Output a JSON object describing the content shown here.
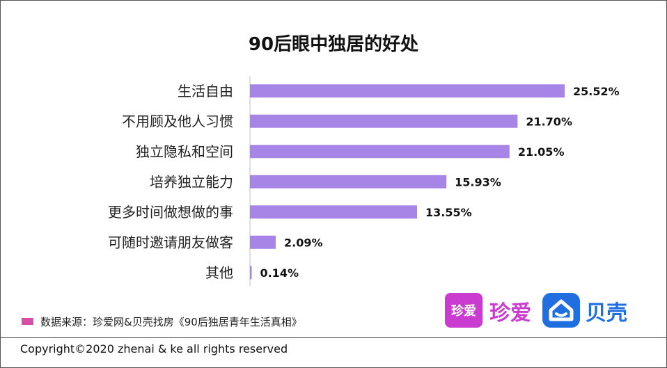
{
  "chart_data": {
    "type": "bar",
    "orientation": "horizontal",
    "title": "90后眼中独居的好处",
    "categories": [
      "生活自由",
      "不用顾及他人习惯",
      "独立隐私和空间",
      "培养独立能力",
      "更多时间做想做的事",
      "可随时邀请朋友做客",
      "其他"
    ],
    "values": [
      25.52,
      21.7,
      21.05,
      15.93,
      13.55,
      2.09,
      0.14
    ],
    "data_labels": [
      "25.52%",
      "21.70%",
      "21.05%",
      "15.93%",
      "13.55%",
      "2.09%",
      "0.14%"
    ],
    "unit": "%",
    "xlim": [
      0,
      30
    ],
    "grid": false,
    "bar_color": "#a785e6"
  },
  "source": {
    "label": "数据来源：珍爱网&贝壳找房《90后独居青年生活真相》",
    "swatch_color": "#d64fa7"
  },
  "logos": {
    "zhenai_icon_text": "珍爱",
    "zhenai_text": "珍爱",
    "zhenai_color": "#c93ccf",
    "ke_text": "贝壳",
    "ke_color": "#1f6fe0"
  },
  "footer": {
    "copyright": "Copyright©2020 zhenai & ke all rights reserved"
  }
}
